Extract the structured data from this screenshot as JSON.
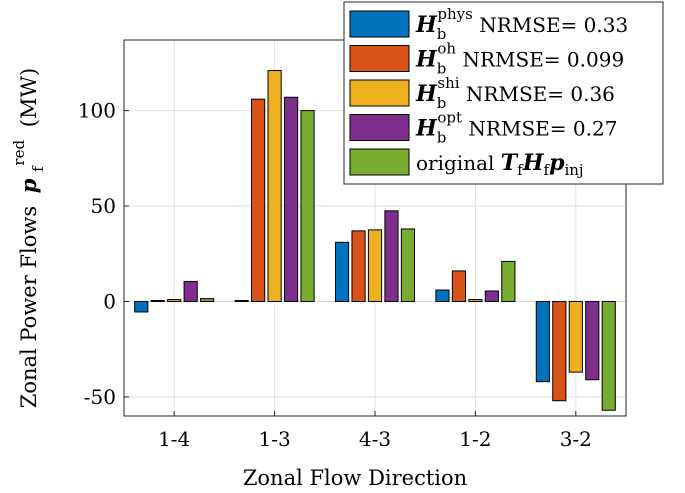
{
  "chart_data": {
    "type": "bar",
    "xlabel": "Zonal Flow Direction",
    "ylabel": "Zonal Power Flows",
    "ylabel_symbol": "p",
    "ylabel_sub": "f",
    "ylabel_sup": "red",
    "ylabel_unit": "(MW)",
    "ylim": [
      -60,
      137
    ],
    "yticks": [
      -50,
      0,
      50,
      100
    ],
    "ytick_labels": [
      "-50",
      "0",
      "50",
      "100"
    ],
    "grid": true,
    "legend_position": "top-right",
    "categories": [
      "1-4",
      "1-3",
      "4-3",
      "1-2",
      "3-2"
    ],
    "series": [
      {
        "name": "H_b^phys NRMSE= 0.33",
        "symbol": "H",
        "sub": "b",
        "sup": "phys",
        "label": "NRMSE= 0.33",
        "color": "#0072BD",
        "values": [
          -5.5,
          0.5,
          31,
          6,
          -42
        ]
      },
      {
        "name": "H_b^oh NRMSE= 0.099",
        "symbol": "H",
        "sub": "b",
        "sup": "oh",
        "label": "NRMSE= 0.099",
        "color": "#D95319",
        "values": [
          0.5,
          106,
          37,
          16,
          -52
        ]
      },
      {
        "name": "H_b^shi NRMSE= 0.36",
        "symbol": "H",
        "sub": "b",
        "sup": "shi",
        "label": "NRMSE= 0.36",
        "color": "#EDB120",
        "values": [
          1,
          121,
          37.5,
          1,
          -37
        ]
      },
      {
        "name": "H_b^opt NRMSE= 0.27",
        "symbol": "H",
        "sub": "b",
        "sup": "opt",
        "label": "NRMSE= 0.27",
        "color": "#7E2F8E",
        "values": [
          10.5,
          107,
          47.5,
          5.5,
          -41
        ]
      },
      {
        "name": "original T_f H_f p_inj",
        "prefix": "original",
        "expr": "TfHfpinj",
        "color": "#77AC30",
        "values": [
          1.5,
          100,
          38,
          21,
          -57
        ]
      }
    ]
  }
}
